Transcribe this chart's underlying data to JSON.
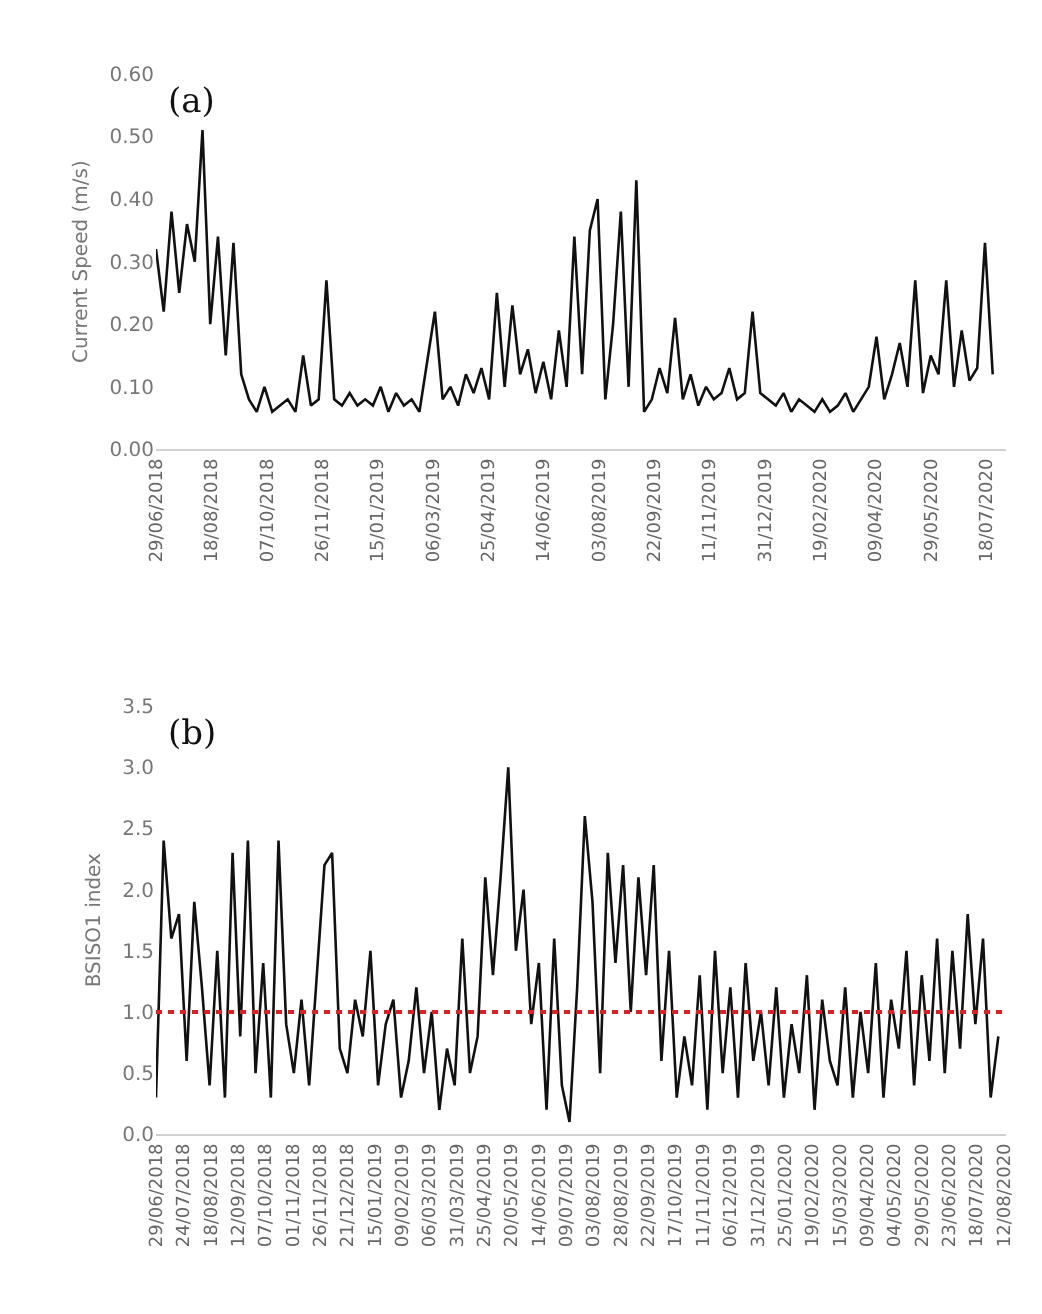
{
  "chart_data": [
    {
      "type": "line",
      "ylabel": "Current Speed (m/s)",
      "annotations": [
        "(a)"
      ],
      "grid": false,
      "marker": "none",
      "line_style": "solid",
      "xlim": [
        "2018-06-29",
        "2020-08-05"
      ],
      "ylim": [
        0,
        0.6
      ],
      "yticks": [
        {
          "value": 0,
          "label": "0.00"
        },
        {
          "value": 0.1,
          "label": "0.10"
        },
        {
          "value": 0.2,
          "label": "0.20"
        },
        {
          "value": 0.3,
          "label": "0.30"
        },
        {
          "value": 0.4,
          "label": "0.40"
        },
        {
          "value": 0.5,
          "label": "0.50"
        },
        {
          "value": 0.6,
          "label": "0.60"
        }
      ],
      "xticks": [
        {
          "value": "2018-06-29",
          "label": "29/06/2018"
        },
        {
          "value": "2018-08-18",
          "label": "18/08/2018"
        },
        {
          "value": "2018-10-07",
          "label": "07/10/2018"
        },
        {
          "value": "2018-11-26",
          "label": "26/11/2018"
        },
        {
          "value": "2019-01-15",
          "label": "15/01/2019"
        },
        {
          "value": "2019-03-06",
          "label": "06/03/2019"
        },
        {
          "value": "2019-04-25",
          "label": "25/04/2019"
        },
        {
          "value": "2019-06-14",
          "label": "14/06/2019"
        },
        {
          "value": "2019-08-03",
          "label": "03/08/2019"
        },
        {
          "value": "2019-09-22",
          "label": "22/09/2019"
        },
        {
          "value": "2019-11-11",
          "label": "11/11/2019"
        },
        {
          "value": "2019-12-31",
          "label": "31/12/2019"
        },
        {
          "value": "2020-02-19",
          "label": "19/02/2020"
        },
        {
          "value": "2020-04-09",
          "label": "09/04/2020"
        },
        {
          "value": "2020-05-29",
          "label": "29/05/2020"
        },
        {
          "value": "2020-07-18",
          "label": "18/07/2020"
        }
      ],
      "series": [
        {
          "color": "#111111",
          "x": [
            "2018-06-29",
            "2018-07-06",
            "2018-07-13",
            "2018-07-20",
            "2018-07-27",
            "2018-08-03",
            "2018-08-10",
            "2018-08-17",
            "2018-08-24",
            "2018-08-31",
            "2018-09-07",
            "2018-09-14",
            "2018-09-21",
            "2018-09-28",
            "2018-10-05",
            "2018-10-12",
            "2018-10-19",
            "2018-10-26",
            "2018-11-02",
            "2018-11-09",
            "2018-11-16",
            "2018-11-23",
            "2018-11-30",
            "2018-12-07",
            "2018-12-14",
            "2018-12-21",
            "2018-12-28",
            "2019-01-04",
            "2019-01-11",
            "2019-01-18",
            "2019-01-25",
            "2019-02-01",
            "2019-02-08",
            "2019-02-15",
            "2019-02-22",
            "2019-03-01",
            "2019-03-08",
            "2019-03-15",
            "2019-03-22",
            "2019-03-29",
            "2019-04-05",
            "2019-04-12",
            "2019-04-19",
            "2019-04-26",
            "2019-05-03",
            "2019-05-10",
            "2019-05-17",
            "2019-05-24",
            "2019-05-31",
            "2019-06-07",
            "2019-06-14",
            "2019-06-21",
            "2019-06-28",
            "2019-07-05",
            "2019-07-12",
            "2019-07-19",
            "2019-07-26",
            "2019-08-02",
            "2019-08-09",
            "2019-08-16",
            "2019-08-23",
            "2019-08-30",
            "2019-09-06",
            "2019-09-13",
            "2019-09-20",
            "2019-09-27",
            "2019-10-04",
            "2019-10-11",
            "2019-10-18",
            "2019-10-25",
            "2019-11-01",
            "2019-11-08",
            "2019-11-15",
            "2019-11-22",
            "2019-11-29",
            "2019-12-06",
            "2019-12-13",
            "2019-12-20",
            "2019-12-27",
            "2020-01-03",
            "2020-01-10",
            "2020-01-17",
            "2020-01-24",
            "2020-01-31",
            "2020-02-07",
            "2020-02-14",
            "2020-02-21",
            "2020-02-28",
            "2020-03-06",
            "2020-03-13",
            "2020-03-20",
            "2020-03-27",
            "2020-04-03",
            "2020-04-10",
            "2020-04-17",
            "2020-04-24",
            "2020-05-01",
            "2020-05-08",
            "2020-05-15",
            "2020-05-22",
            "2020-05-29",
            "2020-06-05",
            "2020-06-12",
            "2020-06-19",
            "2020-06-26",
            "2020-07-03",
            "2020-07-10",
            "2020-07-17",
            "2020-07-24"
          ],
          "values": [
            0.32,
            0.22,
            0.38,
            0.25,
            0.36,
            0.3,
            0.51,
            0.2,
            0.34,
            0.15,
            0.33,
            0.12,
            0.08,
            0.06,
            0.1,
            0.06,
            0.07,
            0.08,
            0.06,
            0.15,
            0.07,
            0.08,
            0.27,
            0.08,
            0.07,
            0.09,
            0.07,
            0.08,
            0.07,
            0.1,
            0.06,
            0.09,
            0.07,
            0.08,
            0.06,
            0.14,
            0.22,
            0.08,
            0.1,
            0.07,
            0.12,
            0.09,
            0.13,
            0.08,
            0.25,
            0.1,
            0.23,
            0.12,
            0.16,
            0.09,
            0.14,
            0.08,
            0.19,
            0.1,
            0.34,
            0.12,
            0.35,
            0.4,
            0.08,
            0.2,
            0.38,
            0.1,
            0.43,
            0.06,
            0.08,
            0.13,
            0.09,
            0.21,
            0.08,
            0.12,
            0.07,
            0.1,
            0.08,
            0.09,
            0.13,
            0.08,
            0.09,
            0.22,
            0.09,
            0.08,
            0.07,
            0.09,
            0.06,
            0.08,
            0.07,
            0.06,
            0.08,
            0.06,
            0.07,
            0.09,
            0.06,
            0.08,
            0.1,
            0.18,
            0.08,
            0.12,
            0.17,
            0.1,
            0.27,
            0.09,
            0.15,
            0.12,
            0.27,
            0.1,
            0.19,
            0.11,
            0.13,
            0.33,
            0.12
          ]
        }
      ]
    },
    {
      "type": "line",
      "ylabel": "BSISO1 index",
      "annotations": [
        "(b)"
      ],
      "grid": false,
      "marker": "none",
      "line_style": "solid",
      "xlim": [
        "2018-06-29",
        "2020-08-14"
      ],
      "ylim": [
        0,
        3.5
      ],
      "yticks": [
        {
          "value": 0,
          "label": "0.0"
        },
        {
          "value": 0.5,
          "label": "0.5"
        },
        {
          "value": 1,
          "label": "1.0"
        },
        {
          "value": 1.5,
          "label": "1.5"
        },
        {
          "value": 2,
          "label": "2.0"
        },
        {
          "value": 2.5,
          "label": "2.5"
        },
        {
          "value": 3,
          "label": "3.0"
        },
        {
          "value": 3.5,
          "label": "3.5"
        }
      ],
      "xticks": [
        {
          "value": "2018-06-29",
          "label": "29/06/2018"
        },
        {
          "value": "2018-07-24",
          "label": "24/07/2018"
        },
        {
          "value": "2018-08-18",
          "label": "18/08/2018"
        },
        {
          "value": "2018-09-12",
          "label": "12/09/2018"
        },
        {
          "value": "2018-10-07",
          "label": "07/10/2018"
        },
        {
          "value": "2018-11-01",
          "label": "01/11/2018"
        },
        {
          "value": "2018-11-26",
          "label": "26/11/2018"
        },
        {
          "value": "2018-12-21",
          "label": "21/12/2018"
        },
        {
          "value": "2019-01-15",
          "label": "15/01/2019"
        },
        {
          "value": "2019-02-09",
          "label": "09/02/2019"
        },
        {
          "value": "2019-03-06",
          "label": "06/03/2019"
        },
        {
          "value": "2019-03-31",
          "label": "31/03/2019"
        },
        {
          "value": "2019-04-25",
          "label": "25/04/2019"
        },
        {
          "value": "2019-05-20",
          "label": "20/05/2019"
        },
        {
          "value": "2019-06-14",
          "label": "14/06/2019"
        },
        {
          "value": "2019-07-09",
          "label": "09/07/2019"
        },
        {
          "value": "2019-08-03",
          "label": "03/08/2019"
        },
        {
          "value": "2019-08-28",
          "label": "28/08/2019"
        },
        {
          "value": "2019-09-22",
          "label": "22/09/2019"
        },
        {
          "value": "2019-10-17",
          "label": "17/10/2019"
        },
        {
          "value": "2019-11-11",
          "label": "11/11/2019"
        },
        {
          "value": "2019-12-06",
          "label": "06/12/2019"
        },
        {
          "value": "2019-12-31",
          "label": "31/12/2019"
        },
        {
          "value": "2020-01-25",
          "label": "25/01/2020"
        },
        {
          "value": "2020-02-19",
          "label": "19/02/2020"
        },
        {
          "value": "2020-03-15",
          "label": "15/03/2020"
        },
        {
          "value": "2020-04-09",
          "label": "09/04/2020"
        },
        {
          "value": "2020-05-04",
          "label": "04/05/2020"
        },
        {
          "value": "2020-05-29",
          "label": "29/05/2020"
        },
        {
          "value": "2020-06-23",
          "label": "23/06/2020"
        },
        {
          "value": "2020-07-18",
          "label": "18/07/2020"
        },
        {
          "value": "2020-08-12",
          "label": "12/08/2020"
        }
      ],
      "ref_lines": [
        {
          "axis": "y",
          "value": 1.0,
          "color": "#e02020",
          "line_style": "dotted"
        }
      ],
      "series": [
        {
          "color": "#111111",
          "x": [
            "2018-06-29",
            "2018-07-06",
            "2018-07-13",
            "2018-07-20",
            "2018-07-27",
            "2018-08-03",
            "2018-08-10",
            "2018-08-17",
            "2018-08-24",
            "2018-08-31",
            "2018-09-07",
            "2018-09-14",
            "2018-09-21",
            "2018-09-28",
            "2018-10-05",
            "2018-10-12",
            "2018-10-19",
            "2018-10-26",
            "2018-11-02",
            "2018-11-09",
            "2018-11-16",
            "2018-11-23",
            "2018-11-30",
            "2018-12-07",
            "2018-12-14",
            "2018-12-21",
            "2018-12-28",
            "2019-01-04",
            "2019-01-11",
            "2019-01-18",
            "2019-01-25",
            "2019-02-01",
            "2019-02-08",
            "2019-02-15",
            "2019-02-22",
            "2019-03-01",
            "2019-03-08",
            "2019-03-15",
            "2019-03-22",
            "2019-03-29",
            "2019-04-05",
            "2019-04-12",
            "2019-04-19",
            "2019-04-26",
            "2019-05-03",
            "2019-05-10",
            "2019-05-17",
            "2019-05-24",
            "2019-05-31",
            "2019-06-07",
            "2019-06-14",
            "2019-06-21",
            "2019-06-28",
            "2019-07-05",
            "2019-07-12",
            "2019-07-19",
            "2019-07-26",
            "2019-08-02",
            "2019-08-09",
            "2019-08-16",
            "2019-08-23",
            "2019-08-30",
            "2019-09-06",
            "2019-09-13",
            "2019-09-20",
            "2019-09-27",
            "2019-10-04",
            "2019-10-11",
            "2019-10-18",
            "2019-10-25",
            "2019-11-01",
            "2019-11-08",
            "2019-11-15",
            "2019-11-22",
            "2019-11-29",
            "2019-12-06",
            "2019-12-13",
            "2019-12-20",
            "2019-12-27",
            "2020-01-03",
            "2020-01-10",
            "2020-01-17",
            "2020-01-24",
            "2020-01-31",
            "2020-02-07",
            "2020-02-14",
            "2020-02-21",
            "2020-02-28",
            "2020-03-06",
            "2020-03-13",
            "2020-03-20",
            "2020-03-27",
            "2020-04-03",
            "2020-04-10",
            "2020-04-17",
            "2020-04-24",
            "2020-05-01",
            "2020-05-08",
            "2020-05-15",
            "2020-05-22",
            "2020-05-29",
            "2020-06-05",
            "2020-06-12",
            "2020-06-19",
            "2020-06-26",
            "2020-07-03",
            "2020-07-10",
            "2020-07-17",
            "2020-07-24",
            "2020-07-31",
            "2020-08-07"
          ],
          "values": [
            0.3,
            2.4,
            1.6,
            1.8,
            0.6,
            1.9,
            1.2,
            0.4,
            1.5,
            0.3,
            2.3,
            0.8,
            2.4,
            0.5,
            1.4,
            0.3,
            2.4,
            0.9,
            0.5,
            1.1,
            0.4,
            1.3,
            2.2,
            2.3,
            0.7,
            0.5,
            1.1,
            0.8,
            1.5,
            0.4,
            0.9,
            1.1,
            0.3,
            0.6,
            1.2,
            0.5,
            1.0,
            0.2,
            0.7,
            0.4,
            1.6,
            0.5,
            0.8,
            2.1,
            1.3,
            2.1,
            3.0,
            1.5,
            2.0,
            0.9,
            1.4,
            0.2,
            1.6,
            0.4,
            0.1,
            1.2,
            2.6,
            1.9,
            0.5,
            2.3,
            1.4,
            2.2,
            1.0,
            2.1,
            1.3,
            2.2,
            0.6,
            1.5,
            0.3,
            0.8,
            0.4,
            1.3,
            0.2,
            1.5,
            0.5,
            1.2,
            0.3,
            1.4,
            0.6,
            1.0,
            0.4,
            1.2,
            0.3,
            0.9,
            0.5,
            1.3,
            0.2,
            1.1,
            0.6,
            0.4,
            1.2,
            0.3,
            1.0,
            0.5,
            1.4,
            0.3,
            1.1,
            0.7,
            1.5,
            0.4,
            1.3,
            0.6,
            1.6,
            0.5,
            1.5,
            0.7,
            1.8,
            0.9,
            1.6,
            0.3,
            0.8
          ]
        }
      ]
    }
  ]
}
